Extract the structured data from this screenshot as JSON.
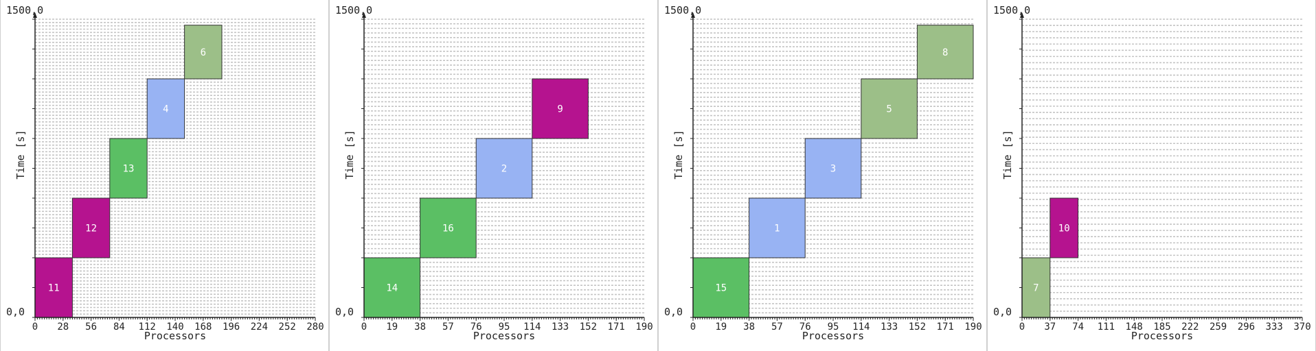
{
  "chart_data": [
    {
      "type": "gantt",
      "xlabel": "Processors",
      "ylabel": "Time [s]",
      "ylim": [
        0,
        1500
      ],
      "xlim": [
        0,
        300
      ],
      "xticks": [
        "0",
        "28",
        "56",
        "84",
        "112",
        "140",
        "168",
        "196",
        "224",
        "252",
        "280"
      ],
      "ytick_top": "1500,0",
      "ytick_bottom": "0,0",
      "grid_lines": 90,
      "jobs": [
        {
          "label": "11",
          "x0": 0,
          "x1": 40,
          "y0": 0,
          "y1": 300,
          "color": "#b5138f"
        },
        {
          "label": "12",
          "x0": 40,
          "x1": 80,
          "y0": 300,
          "y1": 600,
          "color": "#b5138f"
        },
        {
          "label": "13",
          "x0": 80,
          "x1": 120,
          "y0": 600,
          "y1": 900,
          "color": "#5bbf64"
        },
        {
          "label": "4",
          "x0": 120,
          "x1": 160,
          "y0": 900,
          "y1": 1200,
          "color": "#98b3f3"
        },
        {
          "label": "6",
          "x0": 160,
          "x1": 200,
          "y0": 1200,
          "y1": 1470,
          "color": "#9cbf88"
        }
      ]
    },
    {
      "type": "gantt",
      "xlabel": "Processors",
      "ylabel": "Time [s]",
      "ylim": [
        0,
        1500
      ],
      "xlim": [
        0,
        200
      ],
      "xticks": [
        "0",
        "19",
        "38",
        "57",
        "76",
        "95",
        "114",
        "133",
        "152",
        "171",
        "190"
      ],
      "ytick_top": "1500,0",
      "ytick_bottom": "0,0",
      "grid_lines": 65,
      "jobs": [
        {
          "label": "14",
          "x0": 0,
          "x1": 40,
          "y0": 0,
          "y1": 300,
          "color": "#5bbf64"
        },
        {
          "label": "16",
          "x0": 40,
          "x1": 80,
          "y0": 300,
          "y1": 600,
          "color": "#5bbf64"
        },
        {
          "label": "2",
          "x0": 80,
          "x1": 120,
          "y0": 600,
          "y1": 900,
          "color": "#98b3f3"
        },
        {
          "label": "9",
          "x0": 120,
          "x1": 160,
          "y0": 900,
          "y1": 1200,
          "color": "#b5138f"
        }
      ]
    },
    {
      "type": "gantt",
      "xlabel": "Processors",
      "ylabel": "Time [s]",
      "ylim": [
        0,
        1500
      ],
      "xlim": [
        0,
        200
      ],
      "xticks": [
        "0",
        "19",
        "38",
        "57",
        "76",
        "95",
        "114",
        "133",
        "152",
        "171",
        "190"
      ],
      "ytick_top": "1500,0",
      "ytick_bottom": "0,0",
      "grid_lines": 65,
      "jobs": [
        {
          "label": "15",
          "x0": 0,
          "x1": 40,
          "y0": 0,
          "y1": 300,
          "color": "#5bbf64"
        },
        {
          "label": "1",
          "x0": 40,
          "x1": 80,
          "y0": 300,
          "y1": 600,
          "color": "#98b3f3"
        },
        {
          "label": "3",
          "x0": 80,
          "x1": 120,
          "y0": 600,
          "y1": 900,
          "color": "#98b3f3"
        },
        {
          "label": "5",
          "x0": 120,
          "x1": 160,
          "y0": 900,
          "y1": 1200,
          "color": "#9cbf88"
        },
        {
          "label": "8",
          "x0": 160,
          "x1": 200,
          "y0": 1200,
          "y1": 1470,
          "color": "#9cbf88"
        }
      ]
    },
    {
      "type": "gantt",
      "xlabel": "Processors",
      "ylabel": "Time [s]",
      "ylim": [
        0,
        1500
      ],
      "xlim": [
        0,
        400
      ],
      "xticks": [
        "0",
        "37",
        "74",
        "111",
        "148",
        "185",
        "222",
        "259",
        "296",
        "333",
        "370"
      ],
      "ytick_top": "1500,0",
      "ytick_bottom": "0,0",
      "grid_lines": 48,
      "jobs": [
        {
          "label": "7",
          "x0": 0,
          "x1": 40,
          "y0": 0,
          "y1": 300,
          "color": "#9cbf88"
        },
        {
          "label": "10",
          "x0": 40,
          "x1": 80,
          "y0": 300,
          "y1": 600,
          "color": "#b5138f"
        }
      ]
    }
  ]
}
